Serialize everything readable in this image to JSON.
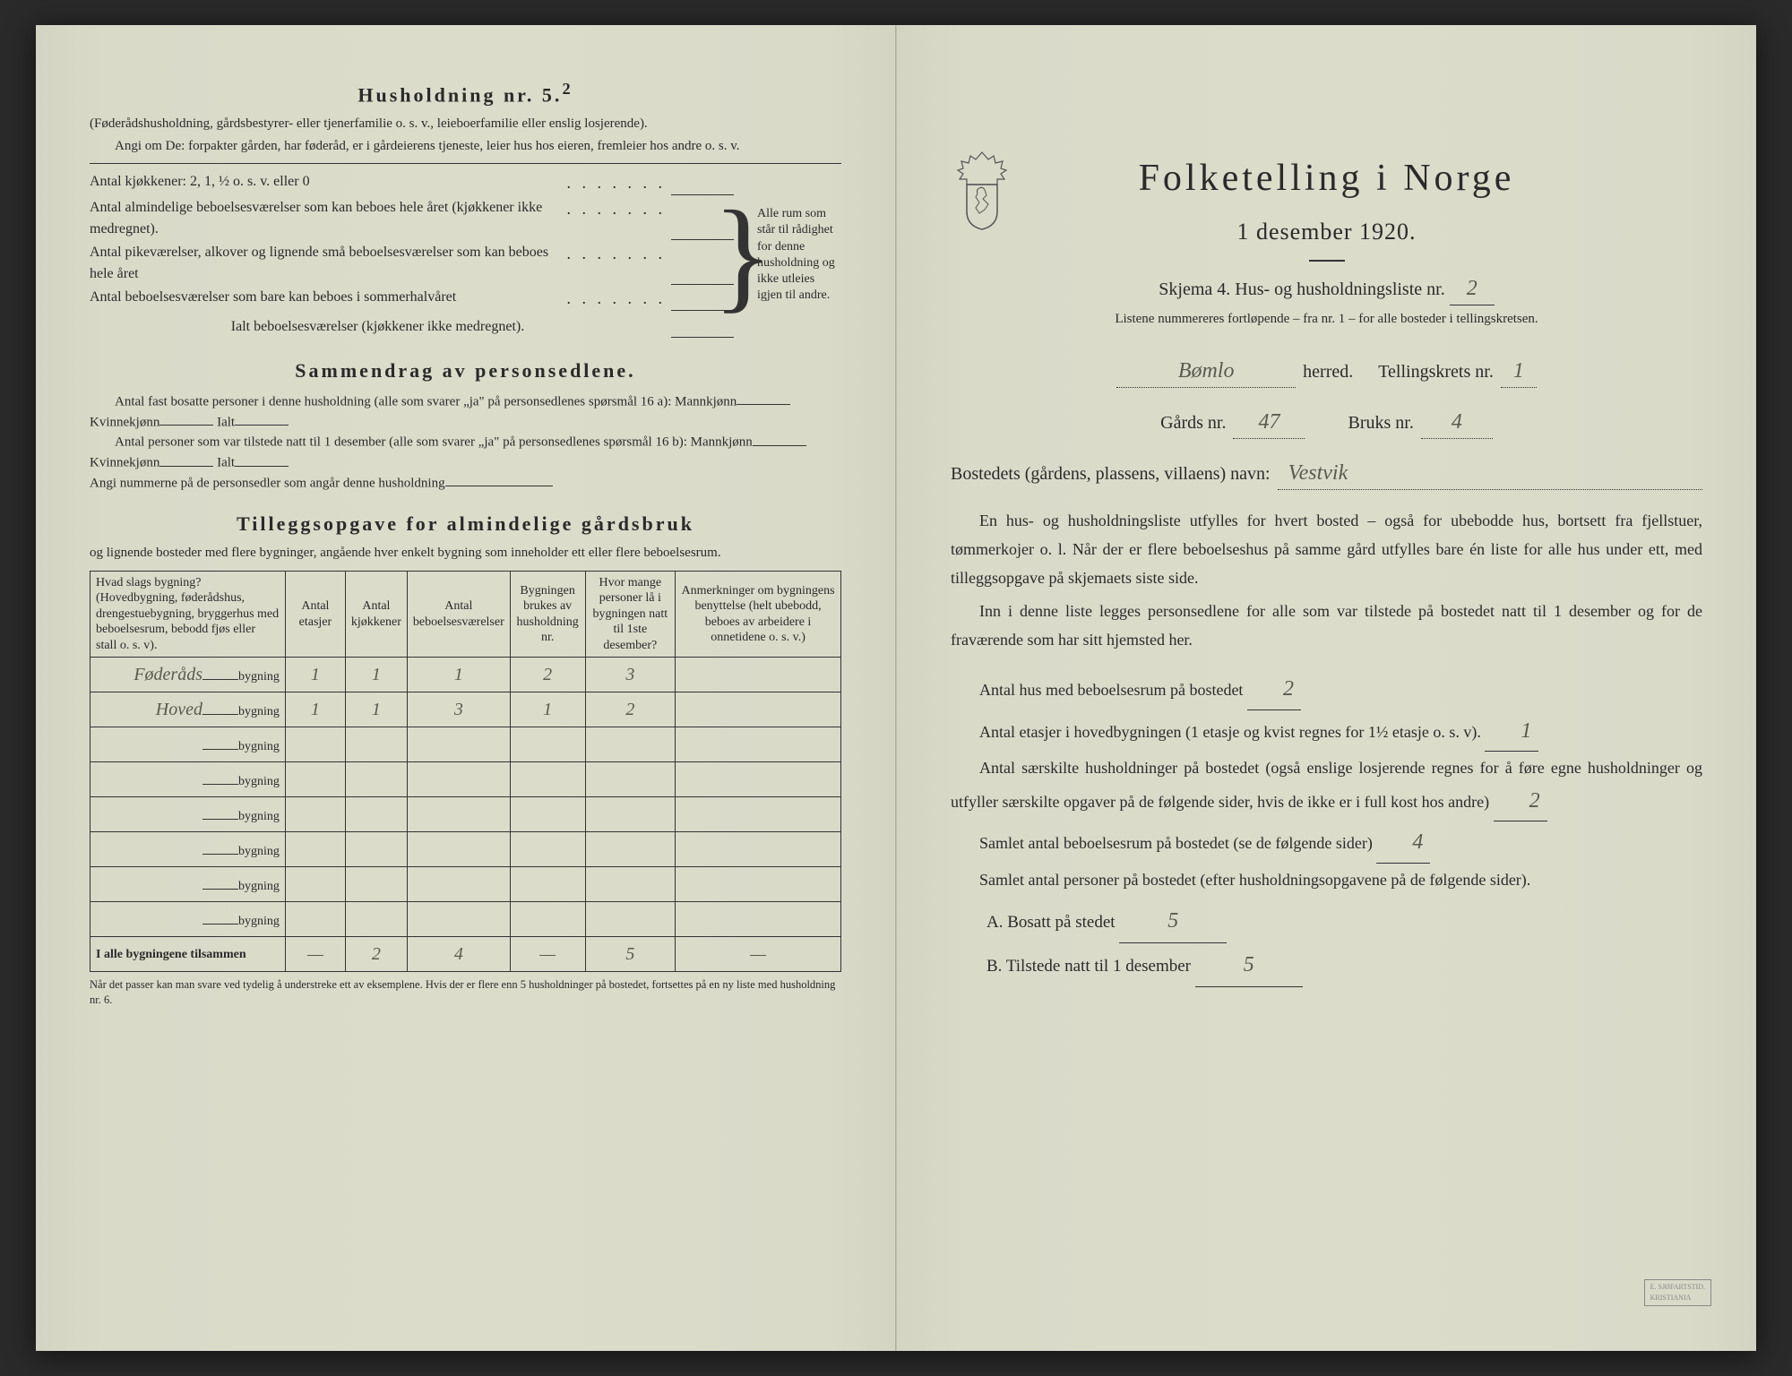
{
  "left": {
    "heading": "Husholdning nr. 5.",
    "heading_sup": "2",
    "sub1": "(Føderådshusholdning, gårdsbestyrer- eller tjenerfamilie o. s. v., leieboerfamilie eller enslig losjerende).",
    "sub2": "Angi om De: forpakter gården, har føderåd, er i gårdeierens tjeneste, leier hus hos eieren, fremleier hos andre o. s. v.",
    "row_kitchen": "Antal kjøkkener: 2, 1, ½ o. s. v. eller 0",
    "row_a": "Antal almindelige beboelsesværelser som kan beboes hele året (kjøkkener ikke medregnet).",
    "row_b": "Antal pikeværelser, alkover og lignende små beboelsesværelser som kan beboes hele året",
    "row_c": "Antal beboelsesværelser som bare kan beboes i sommerhalvåret",
    "row_total": "Ialt beboelsesværelser (kjøkkener ikke medregnet).",
    "brace_text": "Alle rum som står til rådighet for denne husholdning og ikke utleies igjen til andre.",
    "sec2_title": "Sammendrag av personsedlene.",
    "sec2_l1": "Antal fast bosatte personer i denne husholdning (alle som svarer „ja\" på personsedlenes spørsmål 16 a): Mannkjønn",
    "sec2_l1b": "Kvinnekjønn",
    "sec2_l1c": "Ialt",
    "sec2_l2": "Antal personer som var tilstede natt til 1 desember (alle som svarer „ja\" på personsedlenes spørsmål 16 b): Mannkjønn",
    "sec2_l3": "Angi nummerne på de personsedler som angår denne husholdning",
    "sec3_title": "Tilleggsopgave for almindelige gårdsbruk",
    "sec3_sub": "og lignende bosteder med flere bygninger, angående hver enkelt bygning som inneholder ett eller flere beboelsesrum.",
    "table": {
      "headers": [
        "Hvad slags bygning?\n(Hovedbygning, føderådshus, drengestuebygning, bryggerhus med beboelsesrum, bebodd fjøs eller stall o. s. v).",
        "Antal etasjer",
        "Antal kjøkkener",
        "Antal beboelsesværelser",
        "Bygningen brukes av husholdning nr.",
        "Hvor mange personer lå i bygningen natt til 1ste desember?",
        "Anmerkninger om bygningens benyttelse (helt ubebodd, beboes av arbeidere i onnetidene o. s. v.)"
      ],
      "rows": [
        {
          "name": "Føderåds",
          "suffix": "bygning",
          "etasjer": "1",
          "kjokken": "1",
          "vaer": "1",
          "hushold": "2",
          "pers": "3",
          "anm": ""
        },
        {
          "name": "Hoved",
          "suffix": "bygning",
          "etasjer": "1",
          "kjokken": "1",
          "vaer": "3",
          "hushold": "1",
          "pers": "2",
          "anm": ""
        },
        {
          "name": "",
          "suffix": "bygning",
          "etasjer": "",
          "kjokken": "",
          "vaer": "",
          "hushold": "",
          "pers": "",
          "anm": ""
        },
        {
          "name": "",
          "suffix": "bygning",
          "etasjer": "",
          "kjokken": "",
          "vaer": "",
          "hushold": "",
          "pers": "",
          "anm": ""
        },
        {
          "name": "",
          "suffix": "bygning",
          "etasjer": "",
          "kjokken": "",
          "vaer": "",
          "hushold": "",
          "pers": "",
          "anm": ""
        },
        {
          "name": "",
          "suffix": "bygning",
          "etasjer": "",
          "kjokken": "",
          "vaer": "",
          "hushold": "",
          "pers": "",
          "anm": ""
        },
        {
          "name": "",
          "suffix": "bygning",
          "etasjer": "",
          "kjokken": "",
          "vaer": "",
          "hushold": "",
          "pers": "",
          "anm": ""
        },
        {
          "name": "",
          "suffix": "bygning",
          "etasjer": "",
          "kjokken": "",
          "vaer": "",
          "hushold": "",
          "pers": "",
          "anm": ""
        }
      ],
      "total_label": "I alle bygningene tilsammen",
      "totals": {
        "etasjer": "—",
        "kjokken": "2",
        "vaer": "4",
        "hushold": "—",
        "pers": "5",
        "anm": "—"
      }
    },
    "footnote": "Når det passer kan man svare ved tydelig å understreke ett av eksemplene.\nHvis der er flere enn 5 husholdninger på bostedet, fortsettes på en ny liste med husholdning nr. 6."
  },
  "right": {
    "title": "Folketelling i Norge",
    "subtitle": "1 desember 1920.",
    "skjema": "Skjema 4.  Hus- og husholdningsliste nr.",
    "skjema_nr": "2",
    "listnote": "Listene nummereres fortløpende – fra nr. 1 – for alle bosteder i tellingskretsen.",
    "herred_hw": "Bømlo",
    "herred_label": "herred.",
    "krets_label": "Tellingskrets nr.",
    "krets_nr": "1",
    "gards_label": "Gårds nr.",
    "gards_nr": "47",
    "bruks_label": "Bruks nr.",
    "bruks_nr": "4",
    "bosted_label": "Bostedets (gårdens, plassens, villaens) navn:",
    "bosted_hw": "Vestvik",
    "para1": "En hus- og husholdningsliste utfylles for hvert bosted – også for ubebodde hus, bortsett fra fjellstuer, tømmerkojer o. l. Når der er flere beboelseshus på samme gård utfylles bare én liste for alle hus under ett, med tilleggsopgave på skjemaets siste side.",
    "para2": "Inn i denne liste legges personsedlene for alle som var tilstede på bostedet natt til 1 desember og for de fraværende som har sitt hjemsted her.",
    "q1": "Antal hus med beboelsesrum på bostedet",
    "q1_val": "2",
    "q2a": "Antal etasjer i hovedbygningen (1 etasje og kvist regnes for 1½ etasje o. s. v).",
    "q2_val": "1",
    "q3": "Antal særskilte husholdninger på bostedet (også enslige losjerende regnes for å føre egne husholdninger og utfyller særskilte opgaver på de følgende sider, hvis de ikke er i full kost hos andre)",
    "q3_val": "2",
    "q4": "Samlet antal beboelsesrum på bostedet (se de følgende sider)",
    "q4_val": "4",
    "q5": "Samlet antal personer på bostedet (efter husholdningsopgavene på de følgende sider).",
    "qA": "A.  Bosatt på stedet",
    "qA_val": "5",
    "qB": "B.  Tilstede natt til 1 desember",
    "qB_val": "5"
  }
}
